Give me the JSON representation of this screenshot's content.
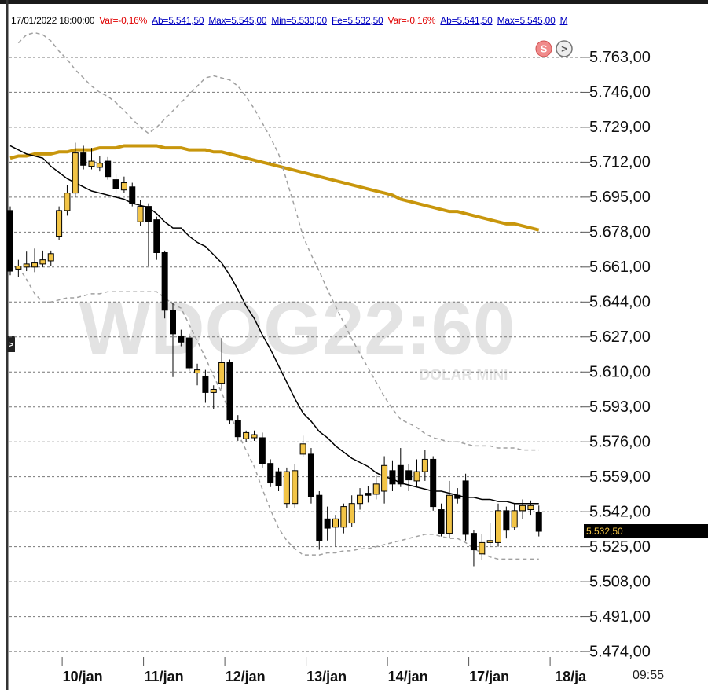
{
  "header": {
    "items": [
      {
        "text": "17/01/2022 18:00:00",
        "color": "#000000",
        "underline": false
      },
      {
        "text": "Var=-0,16%",
        "color": "#e00000",
        "underline": false
      },
      {
        "text": "Ab=5.541,50",
        "color": "#0000c0",
        "underline": true
      },
      {
        "text": "Max=5.545,00",
        "color": "#0000c0",
        "underline": true
      },
      {
        "text": "Min=5.530,00",
        "color": "#0000c0",
        "underline": true
      },
      {
        "text": "Fe=5.532,50",
        "color": "#0000c0",
        "underline": true
      },
      {
        "text": "Var=-0,16%",
        "color": "#e00000",
        "underline": false
      },
      {
        "text": "Ab=5.541,50",
        "color": "#0000c0",
        "underline": true
      },
      {
        "text": "Max=5.545,00",
        "color": "#0000c0",
        "underline": true
      },
      {
        "text": "M",
        "color": "#0000c0",
        "underline": true
      }
    ]
  },
  "buttons": {
    "s": "S",
    "next": ">",
    "side": ">"
  },
  "chart_data": {
    "type": "candlestick",
    "watermark": "WDOG22:60",
    "watermark_sub": "DOLAR MINI",
    "time_label": "09:55",
    "last_price": {
      "value": 5532.5,
      "label": "5.532,50"
    },
    "up_color": "#f2c446",
    "down_color": "#000000",
    "grid": true,
    "ylim": [
      5466,
      5784
    ],
    "yticks": [
      {
        "value": 5763,
        "label": "5.763,00"
      },
      {
        "value": 5746,
        "label": "5.746,00"
      },
      {
        "value": 5729,
        "label": "5.729,00"
      },
      {
        "value": 5712,
        "label": "5.712,00"
      },
      {
        "value": 5695,
        "label": "5.695,00"
      },
      {
        "value": 5678,
        "label": "5.678,00"
      },
      {
        "value": 5661,
        "label": "5.661,00"
      },
      {
        "value": 5644,
        "label": "5.644,00"
      },
      {
        "value": 5627,
        "label": "5.627,00"
      },
      {
        "value": 5610,
        "label": "5.610,00"
      },
      {
        "value": 5593,
        "label": "5.593,00"
      },
      {
        "value": 5576,
        "label": "5.576,00"
      },
      {
        "value": 5559,
        "label": "5.559,00"
      },
      {
        "value": 5542,
        "label": "5.542,00"
      },
      {
        "value": 5525,
        "label": "5.525,00"
      },
      {
        "value": 5508,
        "label": "5.508,00"
      },
      {
        "value": 5491,
        "label": "5.491,00"
      },
      {
        "value": 5474,
        "label": "5.474,00"
      }
    ],
    "categories": [
      null,
      null,
      null,
      null,
      null,
      null,
      "10/jan",
      null,
      null,
      null,
      null,
      null,
      null,
      null,
      null,
      null,
      "11/jan",
      null,
      null,
      null,
      null,
      null,
      null,
      null,
      null,
      null,
      "12/jan",
      null,
      null,
      null,
      null,
      null,
      null,
      null,
      null,
      null,
      "13/jan",
      null,
      null,
      null,
      null,
      null,
      null,
      null,
      null,
      null,
      "14/jan",
      null,
      null,
      null,
      null,
      null,
      null,
      null,
      null,
      null,
      "17/jan",
      null,
      null,
      null,
      null,
      null,
      null,
      null,
      null,
      null
    ],
    "next_category": "18/ja",
    "open": [
      5688.5,
      5660,
      5661,
      5661,
      5662.5,
      5664,
      5676,
      5688.5,
      5697,
      5716.5,
      5710,
      5709.5,
      5712.5,
      5703.5,
      5698.5,
      5700,
      5683,
      5690.5,
      5684,
      5668,
      5640,
      5627.5,
      5626.5,
      5609.5,
      5608,
      5600,
      5604.5,
      5614.5,
      5586.5,
      5577.5,
      5578,
      5578,
      5565.5,
      5561.5,
      5546,
      5546,
      5570,
      5570,
      5550,
      5538.5,
      5534.5,
      5534.5,
      5536.5,
      5546,
      5551,
      5550.5,
      5552,
      5562,
      5564.5,
      5562,
      5557,
      5561.5,
      5567.5,
      5543,
      5531.5,
      5550,
      5557,
      5531.5,
      5521.5,
      5527,
      5527,
      5542.5,
      5534.5,
      5542.5,
      5543,
      5541.5
    ],
    "high": [
      5690.5,
      5664.5,
      5668.5,
      5670,
      5669,
      5669,
      5690.5,
      5701,
      5721.5,
      5720,
      5719,
      5715,
      5714.5,
      5706,
      5705,
      5702,
      5693.5,
      5692,
      5685.5,
      5669,
      5643.5,
      5630.5,
      5628.5,
      5614,
      5611,
      5603.5,
      5626.5,
      5616,
      5589,
      5581.5,
      5581.5,
      5580.5,
      5567.5,
      5563.5,
      5563.5,
      5565,
      5579,
      5573,
      5552,
      5544.5,
      5540.5,
      5546,
      5550,
      5553.5,
      5554.5,
      5559.5,
      5569,
      5567,
      5573,
      5565,
      5567.5,
      5572,
      5569,
      5546,
      5557,
      5553.5,
      5560.5,
      5533,
      5531,
      5536.5,
      5546,
      5544.5,
      5546,
      5548,
      5547.5,
      5545
    ],
    "low": [
      5657,
      5656,
      5659,
      5658.5,
      5661,
      5661.5,
      5674,
      5686,
      5695,
      5708.5,
      5708.5,
      5707.5,
      5703.5,
      5697,
      5697,
      5690.5,
      5681,
      5661.5,
      5664.5,
      5636,
      5607.5,
      5622.5,
      5610.5,
      5603.5,
      5595,
      5592,
      5601.5,
      5584.5,
      5576.5,
      5576,
      5576.5,
      5563.5,
      5554,
      5552,
      5544,
      5544,
      5568.5,
      5546,
      5523.5,
      5528,
      5525,
      5531.5,
      5534.5,
      5543,
      5546.5,
      5548,
      5546,
      5552,
      5554,
      5552,
      5554.5,
      5557,
      5542.5,
      5530,
      5529,
      5546,
      5528,
      5515.5,
      5518.5,
      5525,
      5525,
      5529,
      5533,
      5538.5,
      5540.5,
      5530
    ],
    "close": [
      5659,
      5661.5,
      5662.5,
      5663,
      5664.5,
      5667.5,
      5688.5,
      5697,
      5716.5,
      5710.5,
      5712.5,
      5711.5,
      5705,
      5699,
      5702,
      5692,
      5690.5,
      5683,
      5668,
      5640,
      5628.5,
      5624.5,
      5612,
      5611,
      5600,
      5601.5,
      5614.5,
      5586.5,
      5578.5,
      5580.5,
      5579.5,
      5565.5,
      5556,
      5554.5,
      5561.5,
      5562,
      5575,
      5549.5,
      5528,
      5534,
      5538.5,
      5544.5,
      5546,
      5550,
      5550,
      5555.5,
      5564.5,
      5555.5,
      5555.5,
      5557.5,
      5561.5,
      5567.5,
      5544.5,
      5531.5,
      5550,
      5548.5,
      5531,
      5523.5,
      5527,
      5528,
      5542.5,
      5533,
      5542.5,
      5545,
      5545,
      5532.5
    ],
    "overlays": [
      {
        "color": "#c8960c",
        "width": 4,
        "dash": false,
        "values": [
          5714,
          5715,
          5715,
          5716,
          5716,
          5716,
          5717,
          5717,
          5718,
          5718,
          5718,
          5719,
          5719,
          5719,
          5720,
          5720,
          5720,
          5720,
          5720,
          5719,
          5719,
          5719,
          5718,
          5718,
          5718,
          5717,
          5717,
          5716,
          5715,
          5714,
          5713,
          5712,
          5711,
          5710,
          5709,
          5708,
          5707,
          5706,
          5705,
          5704,
          5703,
          5702,
          5701,
          5700,
          5699,
          5698,
          5697,
          5696,
          5694,
          5693,
          5692,
          5691,
          5690,
          5689,
          5688,
          5688,
          5687,
          5686,
          5685,
          5684,
          5683,
          5682,
          5682,
          5681,
          5680,
          5679
        ]
      },
      {
        "color": "#000000",
        "width": 1.5,
        "dash": false,
        "values": [
          5720,
          5718,
          5716,
          5715,
          5714,
          5710,
          5707,
          5704,
          5702,
          5700,
          5698,
          5697,
          5696,
          5695,
          5694,
          5692,
          5691,
          5690,
          5687,
          5683,
          5680,
          5680,
          5676,
          5673,
          5671,
          5667,
          5663,
          5657,
          5650,
          5642,
          5636,
          5628,
          5621,
          5613,
          5605,
          5597,
          5590,
          5586,
          5581,
          5578,
          5574,
          5571,
          5568,
          5566,
          5564,
          5561,
          5559,
          5558,
          5556,
          5555,
          5554,
          5553,
          5552,
          5552,
          5551,
          5550,
          5549,
          5549,
          5548,
          5548,
          5547,
          5547,
          5546,
          5546,
          5546,
          5546
        ]
      },
      {
        "color": "#a0a0a0",
        "width": 1.5,
        "dash": true,
        "values": [
          null,
          5770,
          5774,
          5775,
          5774,
          5771,
          5766,
          5762,
          5757,
          5753,
          5749,
          5746,
          5744,
          5741,
          5737,
          5733,
          5729,
          5726,
          5729,
          5733,
          5737,
          5741,
          5745,
          5749,
          5753,
          5754,
          5753,
          5752,
          5749,
          5744,
          5738,
          5731,
          5724,
          5716,
          5703,
          5690,
          5676,
          5667,
          5659,
          5650,
          5642,
          5634,
          5626,
          5619,
          5612,
          5605,
          5598,
          5592,
          5587,
          5585,
          5583,
          5580,
          5578,
          5577,
          5576,
          5576,
          5575,
          5574,
          5574,
          5574,
          5573,
          5573,
          5573,
          5572,
          5572,
          5572
        ]
      },
      {
        "color": "#a0a0a0",
        "width": 1.5,
        "dash": true,
        "values": [
          null,
          5661,
          5655,
          5648,
          5644,
          5644,
          5645,
          5646,
          5646,
          5647,
          5648,
          5648,
          5649,
          5649,
          5649,
          5649,
          5649,
          5649,
          5649,
          5646,
          5643,
          5641,
          5633,
          5625,
          5617,
          5608,
          5600,
          5590,
          5580,
          5572,
          5564,
          5553,
          5543,
          5534,
          5528,
          5524,
          5521,
          5521,
          5521,
          5522,
          5522,
          5523,
          5523,
          5524,
          5524,
          5525,
          5526,
          5527,
          5528,
          5529,
          5530,
          5531,
          5531,
          5530,
          5529,
          5529,
          5527,
          5524,
          5522,
          5520,
          5519,
          5519,
          5519,
          5519,
          5519,
          5519
        ]
      }
    ]
  }
}
